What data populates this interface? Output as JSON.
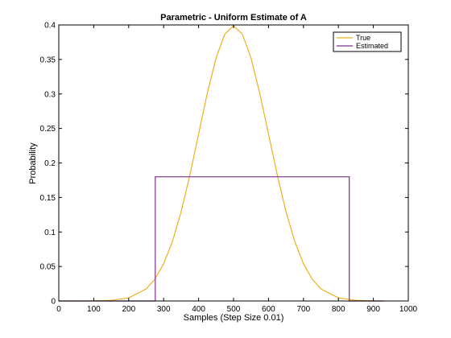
{
  "chart_data": {
    "type": "line",
    "title": "Parametric - Uniform Estimate of A",
    "xlabel": "Samples (Step Size 0.01)",
    "ylabel": "Probability",
    "xlim": [
      0,
      1000
    ],
    "ylim": [
      0,
      0.4
    ],
    "xticks": [
      0,
      100,
      200,
      300,
      400,
      500,
      600,
      700,
      800,
      900,
      1000
    ],
    "yticks": [
      0,
      0.05,
      0.1,
      0.15,
      0.2,
      0.25,
      0.3,
      0.35,
      0.4
    ],
    "ytick_labels": [
      "0",
      "0.05",
      "0.1",
      "0.15",
      "0.2",
      "0.25",
      "0.3",
      "0.35",
      "0.4"
    ],
    "xtick_labels": [
      "0",
      "100",
      "200",
      "300",
      "400",
      "500",
      "600",
      "700",
      "800",
      "900",
      "1000"
    ],
    "grid": false,
    "legend_position": "top-right",
    "series": [
      {
        "name": "True",
        "color": "#EDB120",
        "points": [
          [
            0,
            0.0
          ],
          [
            100,
            0.0001
          ],
          [
            150,
            0.0009
          ],
          [
            200,
            0.0044
          ],
          [
            250,
            0.0175
          ],
          [
            275,
            0.0317
          ],
          [
            300,
            0.054
          ],
          [
            325,
            0.0863
          ],
          [
            350,
            0.1295
          ],
          [
            375,
            0.1826
          ],
          [
            400,
            0.242
          ],
          [
            425,
            0.3011
          ],
          [
            450,
            0.3521
          ],
          [
            475,
            0.3867
          ],
          [
            500,
            0.3989
          ],
          [
            525,
            0.3867
          ],
          [
            550,
            0.3521
          ],
          [
            575,
            0.3011
          ],
          [
            600,
            0.242
          ],
          [
            625,
            0.1826
          ],
          [
            650,
            0.1295
          ],
          [
            675,
            0.0863
          ],
          [
            700,
            0.054
          ],
          [
            725,
            0.0317
          ],
          [
            750,
            0.0175
          ],
          [
            800,
            0.0044
          ],
          [
            850,
            0.0009
          ],
          [
            900,
            0.0001
          ],
          [
            930,
            0.0
          ]
        ]
      },
      {
        "name": "Estimated",
        "color": "#7E2F8E",
        "points": [
          [
            0,
            0.0
          ],
          [
            276,
            0.0
          ],
          [
            276,
            0.18
          ],
          [
            831,
            0.18
          ],
          [
            831,
            0.0
          ],
          [
            930,
            0.0
          ]
        ]
      }
    ]
  }
}
